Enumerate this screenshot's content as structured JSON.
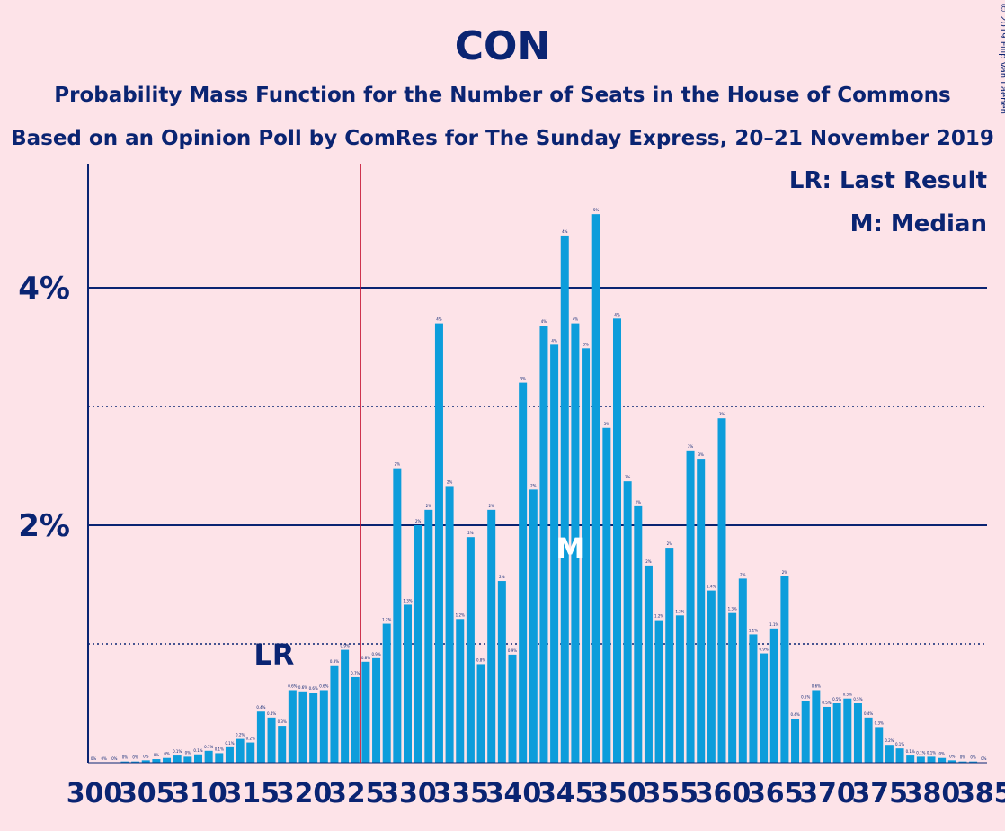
{
  "title": "CON",
  "subtitle": "Probability Mass Function for the Number of Seats in the House of Commons",
  "subtitle2": "Based on an Opinion Poll by ComRes for The Sunday Express, 20–21 November 2019",
  "copyright": "© 2019 Filip van Laenen",
  "legend": {
    "lr": "LR: Last Result",
    "m": "M: Median"
  },
  "markers": {
    "lr_label": "LR",
    "median_label": "M",
    "last_result_seat": 326,
    "median_seat": 345
  },
  "colors": {
    "background": "#fde3e8",
    "bar": "#0d9ddb",
    "text": "#0a2472",
    "last_result_line": "#c40f2e"
  },
  "chart_data": {
    "type": "bar",
    "title": "CON",
    "xlabel": "",
    "ylabel": "",
    "ylim": [
      0,
      5.0
    ],
    "yticks": [
      {
        "value": 2,
        "label": "2%"
      },
      {
        "value": 4,
        "label": "4%"
      }
    ],
    "minor_gridlines": [
      1,
      3
    ],
    "xtick_labels": [
      "300",
      "305",
      "310",
      "315",
      "320",
      "325",
      "330",
      "335",
      "340",
      "345",
      "350",
      "355",
      "360",
      "365",
      "370",
      "375",
      "380",
      "385"
    ],
    "x": [
      300,
      301,
      302,
      303,
      304,
      305,
      306,
      307,
      308,
      309,
      310,
      311,
      312,
      313,
      314,
      315,
      316,
      317,
      318,
      319,
      320,
      321,
      322,
      323,
      324,
      325,
      326,
      327,
      328,
      329,
      330,
      331,
      332,
      333,
      334,
      335,
      336,
      337,
      338,
      339,
      340,
      341,
      342,
      343,
      344,
      345,
      346,
      347,
      348,
      349,
      350,
      351,
      352,
      353,
      354,
      355,
      356,
      357,
      358,
      359,
      360,
      361,
      362,
      363,
      364,
      365,
      366,
      367,
      368,
      369,
      370,
      371,
      372,
      373,
      374,
      375,
      376,
      377,
      378,
      379,
      380,
      381,
      382,
      383,
      384,
      385
    ],
    "values": [
      0.0,
      0.0,
      0.0,
      0.01,
      0.01,
      0.02,
      0.03,
      0.04,
      0.06,
      0.05,
      0.07,
      0.1,
      0.08,
      0.13,
      0.2,
      0.17,
      0.43,
      0.38,
      0.31,
      0.61,
      0.6,
      0.59,
      0.61,
      0.82,
      0.95,
      0.72,
      0.85,
      0.88,
      1.17,
      2.48,
      1.33,
      2.0,
      2.13,
      3.7,
      2.33,
      1.21,
      1.9,
      0.83,
      2.13,
      1.53,
      0.91,
      3.2,
      2.3,
      3.68,
      3.52,
      4.44,
      3.7,
      3.49,
      4.62,
      2.82,
      3.74,
      2.37,
      2.16,
      1.66,
      1.2,
      1.81,
      1.24,
      2.63,
      2.56,
      1.45,
      2.9,
      1.26,
      1.55,
      1.08,
      0.92,
      1.13,
      1.57,
      0.37,
      0.52,
      0.61,
      0.47,
      0.5,
      0.54,
      0.5,
      0.38,
      0.3,
      0.15,
      0.12,
      0.06,
      0.05,
      0.05,
      0.04,
      0.02,
      0.01,
      0.01,
      0.0
    ],
    "labels": [
      "0%",
      "0%",
      "0%",
      "0%",
      "0%",
      "0%",
      "0%",
      "0%",
      "0.1%",
      "0%",
      "0.1%",
      "0.1%",
      "0.1%",
      "0.1%",
      "0.2%",
      "0.2%",
      "0.4%",
      "0.4%",
      "0.3%",
      "0.6%",
      "0.6%",
      "0.6%",
      "0.6%",
      "0.8%",
      "0.9%",
      "0.7%",
      "0.8%",
      "0.9%",
      "1.2%",
      "2%",
      "1.3%",
      "2%",
      "2%",
      "4%",
      "2%",
      "1.2%",
      "2%",
      "0.8%",
      "2%",
      "2%",
      "0.9%",
      "3%",
      "2%",
      "4%",
      "4%",
      "4%",
      "4%",
      "3%",
      "5%",
      "3%",
      "4%",
      "2%",
      "2%",
      "2%",
      "1.2%",
      "2%",
      "1.2%",
      "3%",
      "3%",
      "1.4%",
      "3%",
      "1.3%",
      "2%",
      "1.1%",
      "0.9%",
      "1.1%",
      "2%",
      "0.4%",
      "0.5%",
      "0.6%",
      "0.5%",
      "0.5%",
      "0.5%",
      "0.5%",
      "0.4%",
      "0.3%",
      "0.2%",
      "0.1%",
      "0.1%",
      "0.1%",
      "0.1%",
      "0%",
      "0%",
      "0%",
      "0%",
      "0%"
    ]
  }
}
